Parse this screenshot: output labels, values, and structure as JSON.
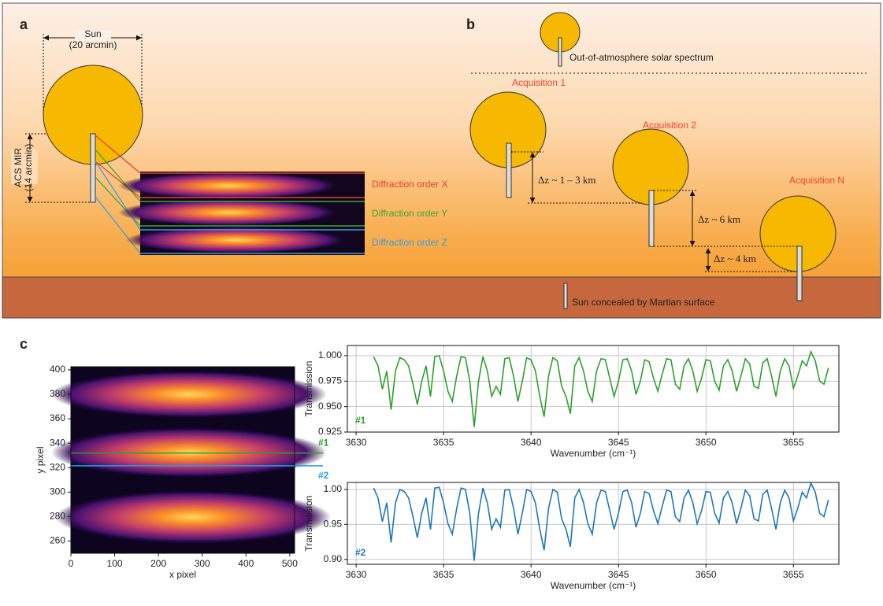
{
  "panel_a": {
    "label": "a",
    "sun_label": "Sun",
    "sun_size": "(20 arcmin)",
    "instrument": "ACS MIR",
    "instrument_size": "(14 arcmin)",
    "orders": [
      "Diffraction order X",
      "Diffraction order Y",
      "Diffraction order Z"
    ]
  },
  "panel_b": {
    "label": "b",
    "reference": "Out-of-atmosphere solar spectrum",
    "acquisitions": [
      "Acquisition 1",
      "Acquisition 2",
      "Acquisition N"
    ],
    "steps": [
      "Δz ~ 1 – 3 km",
      "Δz ~ 6 km",
      "Δz ~ 4 km"
    ],
    "surface": "Sun concealed by Martian surface"
  },
  "panel_c_label": "c",
  "chart_data": [
    {
      "type": "image",
      "xlabel": "x pixel",
      "ylabel": "y pixel",
      "xlim": [
        0,
        511
      ],
      "ylim": [
        250,
        402.5
      ],
      "xticks": [
        0,
        100,
        200,
        300,
        400,
        500
      ],
      "yticks": [
        260,
        280,
        300,
        320,
        340,
        360,
        380,
        400
      ],
      "lines": [
        {
          "name": "#1",
          "color": "#2ca02c",
          "y": 332
        },
        {
          "name": "#2",
          "color": "#1f9fe0",
          "y": 321.5
        }
      ]
    },
    {
      "type": "line",
      "xlabel": "Wavenumber (cm⁻¹)",
      "ylabel": "Transmission",
      "grid": true,
      "xlim": [
        3629.5,
        3657.6
      ],
      "ylim": [
        0.925,
        1.01
      ],
      "xticks": [
        3630,
        3635,
        3640,
        3645,
        3650,
        3655
      ],
      "yticks": [
        {
          "value": 0.925,
          "label": "0.925"
        },
        {
          "value": 0.95,
          "label": "0.950"
        },
        0.975,
        {
          "value": 1,
          "label": "1.000"
        }
      ],
      "x": [
        3631,
        3631.25,
        3631.5,
        3631.75,
        3632,
        3632.25,
        3632.5,
        3632.75,
        3633,
        3633.25,
        3633.5,
        3633.75,
        3634,
        3634.25,
        3634.5,
        3634.75,
        3635,
        3635.25,
        3635.5,
        3635.75,
        3636,
        3636.25,
        3636.5,
        3636.75,
        3637,
        3637.25,
        3637.5,
        3637.75,
        3638,
        3638.25,
        3638.5,
        3638.75,
        3639,
        3639.25,
        3639.5,
        3639.75,
        3640,
        3640.25,
        3640.5,
        3640.75,
        3641,
        3641.25,
        3641.5,
        3641.75,
        3642,
        3642.25,
        3642.5,
        3642.75,
        3643,
        3643.25,
        3643.5,
        3643.75,
        3644,
        3644.25,
        3644.5,
        3644.75,
        3645,
        3645.25,
        3645.5,
        3645.75,
        3646,
        3646.25,
        3646.5,
        3646.75,
        3647,
        3647.25,
        3647.5,
        3647.75,
        3648,
        3648.25,
        3648.5,
        3648.75,
        3649,
        3649.25,
        3649.5,
        3649.75,
        3650,
        3650.25,
        3650.5,
        3650.75,
        3651,
        3651.25,
        3651.5,
        3651.75,
        3652,
        3652.25,
        3652.5,
        3652.75,
        3653,
        3653.25,
        3653.5,
        3653.75,
        3654,
        3654.25,
        3654.5,
        3654.75,
        3655,
        3655.25,
        3655.5,
        3655.75,
        3656,
        3656.25,
        3656.5,
        3656.75,
        3657
      ],
      "series": [
        {
          "name": "#1",
          "color": "#2ca02c",
          "values": [
            0.999,
            0.99,
            0.967,
            0.985,
            0.947,
            0.985,
            0.998,
            0.996,
            0.99,
            0.972,
            0.952,
            0.975,
            0.99,
            0.96,
            0.999,
            1.0,
            0.985,
            0.965,
            0.955,
            0.98,
            0.999,
            0.998,
            0.975,
            0.93,
            0.975,
            0.999,
            0.985,
            0.96,
            0.97,
            0.962,
            0.997,
            0.998,
            0.98,
            0.955,
            0.975,
            0.998,
            0.996,
            0.985,
            0.96,
            0.94,
            0.98,
            0.998,
            0.995,
            0.97,
            0.96,
            0.943,
            0.99,
            0.998,
            0.985,
            0.965,
            0.955,
            0.985,
            0.997,
            0.996,
            0.978,
            0.96,
            0.975,
            0.996,
            0.997,
            0.985,
            0.962,
            0.975,
            0.996,
            0.994,
            0.978,
            0.965,
            0.982,
            0.997,
            0.996,
            0.972,
            0.967,
            0.99,
            0.997,
            0.985,
            0.965,
            0.978,
            0.996,
            0.995,
            0.975,
            0.966,
            0.99,
            0.996,
            0.985,
            0.965,
            0.98,
            0.997,
            0.992,
            0.97,
            0.968,
            0.993,
            0.997,
            0.98,
            0.96,
            0.985,
            0.997,
            0.99,
            0.968,
            0.98,
            0.995,
            0.99,
            1.004,
            0.995,
            0.975,
            0.972,
            0.988
          ]
        }
      ]
    },
    {
      "type": "line",
      "xlabel": "Wavenumber (cm⁻¹)",
      "ylabel": "Transmission",
      "grid": true,
      "xlim": [
        3629.5,
        3657.6
      ],
      "ylim": [
        0.893,
        1.01
      ],
      "xticks": [
        3630,
        3635,
        3640,
        3645,
        3650,
        3655
      ],
      "yticks": [
        {
          "value": 0.9,
          "label": "0.90"
        },
        {
          "value": 0.95,
          "label": "0.95"
        },
        {
          "value": 1,
          "label": "1.00"
        }
      ],
      "x": [
        3631,
        3631.25,
        3631.5,
        3631.75,
        3632,
        3632.25,
        3632.5,
        3632.75,
        3633,
        3633.25,
        3633.5,
        3633.75,
        3634,
        3634.25,
        3634.5,
        3634.75,
        3635,
        3635.25,
        3635.5,
        3635.75,
        3636,
        3636.25,
        3636.5,
        3636.75,
        3637,
        3637.25,
        3637.5,
        3637.75,
        3638,
        3638.25,
        3638.5,
        3638.75,
        3639,
        3639.25,
        3639.5,
        3639.75,
        3640,
        3640.25,
        3640.5,
        3640.75,
        3641,
        3641.25,
        3641.5,
        3641.75,
        3642,
        3642.25,
        3642.5,
        3642.75,
        3643,
        3643.25,
        3643.5,
        3643.75,
        3644,
        3644.25,
        3644.5,
        3644.75,
        3645,
        3645.25,
        3645.5,
        3645.75,
        3646,
        3646.25,
        3646.5,
        3646.75,
        3647,
        3647.25,
        3647.5,
        3647.75,
        3648,
        3648.25,
        3648.5,
        3648.75,
        3649,
        3649.25,
        3649.5,
        3649.75,
        3650,
        3650.25,
        3650.5,
        3650.75,
        3651,
        3651.25,
        3651.5,
        3651.75,
        3652,
        3652.25,
        3652.5,
        3652.75,
        3653,
        3653.25,
        3653.5,
        3653.75,
        3654,
        3654.25,
        3654.5,
        3654.75,
        3655,
        3655.25,
        3655.5,
        3655.75,
        3656,
        3656.25,
        3656.5,
        3656.75,
        3657
      ],
      "series": [
        {
          "name": "#2",
          "color": "#1f77b4",
          "values": [
            1.002,
            0.988,
            0.954,
            0.981,
            0.924,
            0.981,
            1.0,
            0.997,
            0.988,
            0.961,
            0.931,
            0.966,
            0.988,
            0.943,
            1.002,
            1.003,
            0.981,
            0.951,
            0.936,
            0.973,
            1.002,
            1.0,
            0.966,
            0.898,
            0.966,
            1.002,
            0.981,
            0.943,
            0.958,
            0.946,
            0.999,
            1.0,
            0.973,
            0.936,
            0.966,
            1.0,
            0.997,
            0.981,
            0.943,
            0.913,
            0.973,
            1.0,
            0.996,
            0.958,
            0.943,
            0.918,
            0.988,
            1.0,
            0.981,
            0.951,
            0.936,
            0.981,
            0.999,
            0.997,
            0.97,
            0.943,
            0.966,
            0.997,
            0.999,
            0.981,
            0.946,
            0.966,
            0.997,
            0.994,
            0.97,
            0.951,
            0.976,
            0.999,
            0.997,
            0.961,
            0.954,
            0.988,
            0.999,
            0.981,
            0.951,
            0.97,
            0.997,
            0.996,
            0.966,
            0.952,
            0.988,
            0.997,
            0.981,
            0.951,
            0.973,
            0.999,
            0.991,
            0.958,
            0.955,
            0.993,
            0.999,
            0.973,
            0.943,
            0.981,
            0.999,
            0.988,
            0.955,
            0.973,
            0.996,
            0.988,
            1.009,
            0.996,
            0.966,
            0.961,
            0.985
          ]
        }
      ]
    }
  ]
}
